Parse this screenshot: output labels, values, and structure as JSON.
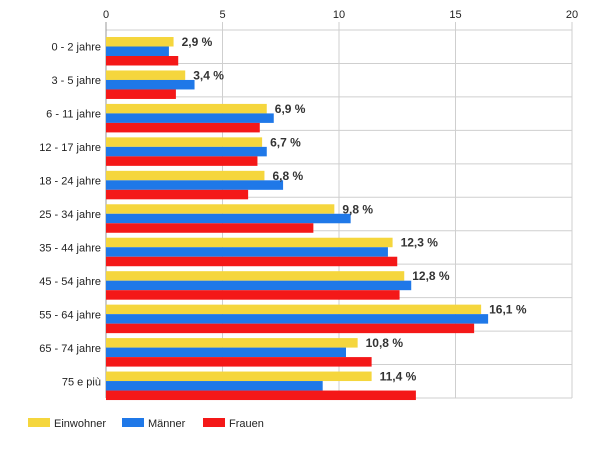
{
  "chart_data": {
    "type": "bar",
    "orientation": "horizontal",
    "categories": [
      "0 - 2 jahre",
      "3 - 5 jahre",
      "6 - 11 jahre",
      "12 - 17 jahre",
      "18 - 24 jahre",
      "25 - 34 jahre",
      "35 - 44 jahre",
      "45 - 54 jahre",
      "55 - 64 jahre",
      "65 - 74 jahre",
      "75 e più"
    ],
    "series": [
      {
        "name": "Einwohner",
        "color": "#f5d63d",
        "values": [
          2.9,
          3.4,
          6.9,
          6.7,
          6.8,
          9.8,
          12.3,
          12.8,
          16.1,
          10.8,
          11.4
        ]
      },
      {
        "name": "Männer",
        "color": "#1f78e8",
        "values": [
          2.7,
          3.8,
          7.2,
          6.9,
          7.6,
          10.5,
          12.1,
          13.1,
          16.4,
          10.3,
          9.3
        ]
      },
      {
        "name": "Frauen",
        "color": "#f41818",
        "values": [
          3.1,
          3.0,
          6.6,
          6.5,
          6.1,
          8.9,
          12.5,
          12.6,
          15.8,
          11.4,
          13.3
        ]
      }
    ],
    "data_labels": [
      "2,9 %",
      "3,4 %",
      "6,9 %",
      "6,7 %",
      "6,8 %",
      "9,8 %",
      "12,3 %",
      "12,8 %",
      "16,1 %",
      "10,8 %",
      "11,4 %"
    ],
    "x_ticks": [
      "0",
      "5",
      "10",
      "15",
      "20"
    ],
    "xlim": [
      0,
      20
    ],
    "xlabel": "",
    "ylabel": "",
    "title": "",
    "grid": true,
    "legend_position": "bottom-left"
  }
}
